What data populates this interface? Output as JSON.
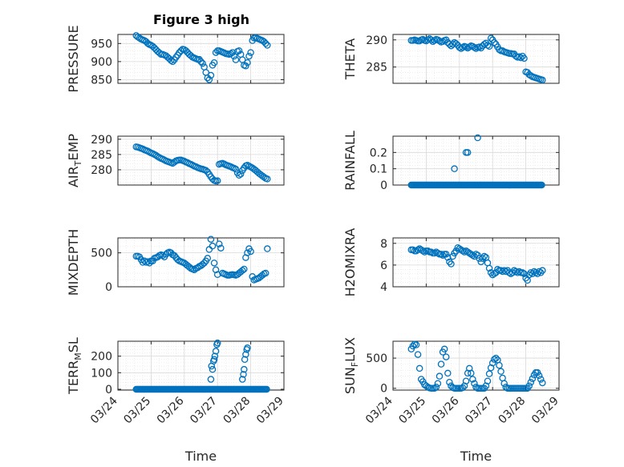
{
  "figure": {
    "title": "Figure 3 high",
    "marker_color": "#0072BD",
    "grid": "on (major and minor)"
  },
  "chart_data": [
    {
      "type": "scatter",
      "ylabel": "PRESSURE",
      "title": "Figure 3 high",
      "ylim": [
        840,
        975
      ],
      "yticks": [
        850,
        900,
        950
      ],
      "x": [
        24.55,
        24.6,
        24.65,
        24.7,
        24.75,
        24.8,
        24.85,
        24.9,
        24.95,
        25.0,
        25.05,
        25.1,
        25.15,
        25.2,
        25.25,
        25.3,
        25.35,
        25.4,
        25.45,
        25.5,
        25.55,
        25.6,
        25.65,
        25.7,
        25.75,
        25.8,
        25.85,
        25.9,
        25.95,
        26.0,
        26.05,
        26.1,
        26.15,
        26.2,
        26.25,
        26.3,
        26.35,
        26.4,
        26.45,
        26.5,
        26.55,
        26.6,
        26.65,
        26.7,
        26.75,
        26.8,
        26.85,
        26.9,
        26.95,
        27.0,
        27.05,
        27.1,
        27.15,
        27.2,
        27.25,
        27.3,
        27.35,
        27.4,
        27.45,
        27.5,
        27.55,
        27.6,
        27.65,
        27.7,
        27.75,
        27.8,
        27.85,
        27.9,
        27.95,
        28.0,
        28.05,
        28.1,
        28.15,
        28.2,
        28.25,
        28.3,
        28.35,
        28.4,
        28.45,
        28.5
      ],
      "y": [
        972,
        968,
        965,
        962,
        960,
        958,
        955,
        950,
        947,
        945,
        942,
        938,
        933,
        928,
        924,
        920,
        920,
        918,
        916,
        912,
        908,
        903,
        900,
        905,
        912,
        918,
        925,
        930,
        934,
        933,
        930,
        925,
        920,
        916,
        912,
        910,
        908,
        906,
        906,
        900,
        895,
        885,
        870,
        855,
        850,
        862,
        890,
        897,
        925,
        930,
        930,
        928,
        926,
        924,
        922,
        921,
        920,
        922,
        925,
        915,
        905,
        928,
        930,
        920,
        905,
        890,
        888,
        897,
        915,
        925,
        958,
        965,
        966,
        964,
        962,
        960,
        958,
        955,
        950,
        945
      ]
    },
    {
      "type": "scatter",
      "ylabel": "THETA",
      "ylim": [
        282,
        291
      ],
      "yticks": [
        285,
        290
      ],
      "x": [
        24.55,
        24.6,
        24.65,
        24.7,
        24.75,
        24.8,
        24.85,
        24.9,
        24.95,
        25.0,
        25.05,
        25.1,
        25.15,
        25.2,
        25.25,
        25.3,
        25.35,
        25.4,
        25.45,
        25.5,
        25.55,
        25.6,
        25.65,
        25.7,
        25.75,
        25.8,
        25.85,
        25.9,
        25.95,
        26.0,
        26.05,
        26.1,
        26.15,
        26.2,
        26.25,
        26.3,
        26.35,
        26.4,
        26.45,
        26.5,
        26.55,
        26.6,
        26.65,
        26.7,
        26.75,
        26.8,
        26.85,
        26.9,
        26.95,
        27.0,
        27.05,
        27.1,
        27.15,
        27.2,
        27.25,
        27.3,
        27.35,
        27.4,
        27.45,
        27.5,
        27.55,
        27.6,
        27.65,
        27.7,
        27.75,
        27.8,
        27.85,
        27.9,
        27.95,
        28.0,
        28.05,
        28.1,
        28.15,
        28.2,
        28.25,
        28.3,
        28.35,
        28.4,
        28.45,
        28.5
      ],
      "y": [
        289.9,
        289.9,
        290.0,
        289.9,
        289.8,
        289.8,
        290.0,
        290.1,
        289.9,
        289.8,
        290.0,
        290.2,
        290.0,
        289.7,
        289.9,
        290.1,
        290.0,
        289.8,
        289.6,
        289.7,
        289.9,
        290.0,
        289.5,
        289.2,
        288.9,
        289.2,
        289.5,
        289.3,
        289.0,
        288.6,
        288.4,
        288.6,
        288.8,
        288.7,
        288.5,
        288.7,
        288.9,
        288.8,
        288.6,
        288.4,
        288.6,
        288.7,
        288.5,
        288.9,
        289.2,
        289.4,
        289.0,
        288.8,
        290.3,
        290.0,
        289.5,
        289.2,
        288.7,
        288.2,
        288.0,
        288.0,
        287.8,
        287.7,
        287.6,
        287.5,
        287.5,
        287.4,
        287.4,
        287.0,
        286.8,
        286.9,
        286.7,
        287.0,
        286.6,
        284.1,
        284.0,
        283.6,
        283.4,
        283.2,
        283.1,
        283.0,
        282.9,
        282.8,
        282.7,
        282.6
      ]
    },
    {
      "type": "scatter",
      "ylabel": "AIR_TEMP",
      "ylim": [
        275,
        291
      ],
      "yticks": [
        280,
        285,
        290
      ],
      "x": [
        24.55,
        24.6,
        24.65,
        24.7,
        24.75,
        24.8,
        24.85,
        24.9,
        24.95,
        25.0,
        25.05,
        25.1,
        25.15,
        25.2,
        25.25,
        25.3,
        25.35,
        25.4,
        25.45,
        25.5,
        25.55,
        25.6,
        25.65,
        25.7,
        25.75,
        25.8,
        25.85,
        25.9,
        25.95,
        26.0,
        26.05,
        26.1,
        26.15,
        26.2,
        26.25,
        26.3,
        26.35,
        26.4,
        26.45,
        26.5,
        26.55,
        26.6,
        26.65,
        26.7,
        26.75,
        26.8,
        26.85,
        26.9,
        26.95,
        27.0,
        27.05,
        27.1,
        27.15,
        27.2,
        27.25,
        27.3,
        27.35,
        27.4,
        27.45,
        27.5,
        27.55,
        27.6,
        27.65,
        27.7,
        27.75,
        27.8,
        27.85,
        27.9,
        27.95,
        28.0,
        28.05,
        28.1,
        28.15,
        28.2,
        28.25,
        28.3,
        28.35,
        28.4,
        28.45,
        28.5
      ],
      "y": [
        287.5,
        287.4,
        287.2,
        287.0,
        286.8,
        286.5,
        286.3,
        286.1,
        285.8,
        285.5,
        285.3,
        285.0,
        284.7,
        284.3,
        284.0,
        283.7,
        283.5,
        283.2,
        282.9,
        282.7,
        282.5,
        282.3,
        282.1,
        282.5,
        282.9,
        283.1,
        283.2,
        283.2,
        283.0,
        282.8,
        282.5,
        282.3,
        282.0,
        281.8,
        281.5,
        281.2,
        281.0,
        280.7,
        280.5,
        280.3,
        280.2,
        280.0,
        279.8,
        279.3,
        278.5,
        277.7,
        277.0,
        276.5,
        276.3,
        276.4,
        281.8,
        282.0,
        282.1,
        281.9,
        281.6,
        281.4,
        281.2,
        281.0,
        280.7,
        280.5,
        280.2,
        279.0,
        278.2,
        278.6,
        279.8,
        280.6,
        281.3,
        281.5,
        281.2,
        280.9,
        280.6,
        280.2,
        279.8,
        279.3,
        278.8,
        278.4,
        278.0,
        277.6,
        277.2,
        277.0
      ]
    },
    {
      "type": "scatter",
      "ylabel": "RAINFALL",
      "ylim": [
        0,
        0.3
      ],
      "yticks": [
        0,
        0.1,
        0.2
      ],
      "x_zero_range": [
        24.55,
        28.5
      ],
      "x": [
        25.85,
        26.2,
        26.25,
        26.55
      ],
      "y": [
        0.1,
        0.2,
        0.2,
        0.29
      ]
    },
    {
      "type": "scatter",
      "ylabel": "MIXDEPTH",
      "ylim": [
        0,
        720
      ],
      "yticks": [
        0,
        500
      ],
      "x": [
        24.55,
        24.6,
        24.65,
        24.7,
        24.75,
        24.8,
        24.85,
        24.9,
        24.95,
        25.0,
        25.05,
        25.1,
        25.15,
        25.2,
        25.25,
        25.3,
        25.35,
        25.4,
        25.45,
        25.5,
        25.55,
        25.6,
        25.65,
        25.7,
        25.75,
        25.8,
        25.85,
        25.9,
        25.95,
        26.0,
        26.05,
        26.1,
        26.15,
        26.2,
        26.25,
        26.3,
        26.35,
        26.4,
        26.45,
        26.5,
        26.55,
        26.6,
        26.65,
        26.7,
        26.75,
        26.8,
        26.85,
        26.9,
        26.95,
        27.0,
        27.05,
        27.1,
        27.15,
        27.2,
        27.25,
        27.3,
        27.35,
        27.4,
        27.45,
        27.5,
        27.55,
        27.6,
        27.65,
        27.7,
        27.75,
        27.8,
        27.85,
        27.9,
        27.95,
        28.0,
        28.05,
        28.1,
        28.15,
        28.2,
        28.25,
        28.3,
        28.35,
        28.4,
        28.45,
        28.5
      ],
      "y": [
        450,
        450,
        440,
        400,
        360,
        380,
        360,
        370,
        350,
        380,
        380,
        420,
        430,
        440,
        460,
        470,
        460,
        440,
        480,
        500,
        510,
        500,
        470,
        460,
        430,
        400,
        380,
        370,
        360,
        350,
        330,
        310,
        290,
        270,
        260,
        250,
        270,
        280,
        300,
        310,
        330,
        350,
        380,
        420,
        550,
        700,
        600,
        350,
        250,
        180,
        630,
        570,
        200,
        190,
        180,
        170,
        170,
        175,
        180,
        175,
        170,
        180,
        200,
        220,
        240,
        260,
        430,
        500,
        560,
        520,
        150,
        100,
        110,
        120,
        130,
        150,
        170,
        190,
        200,
        560
      ]
    },
    {
      "type": "scatter",
      "ylabel": "H2OMIXRA",
      "ylim": [
        4,
        8.5
      ],
      "yticks": [
        4,
        6,
        8
      ],
      "x": [
        24.55,
        24.6,
        24.65,
        24.7,
        24.75,
        24.8,
        24.85,
        24.9,
        24.95,
        25.0,
        25.05,
        25.1,
        25.15,
        25.2,
        25.25,
        25.3,
        25.35,
        25.4,
        25.45,
        25.5,
        25.55,
        25.6,
        25.65,
        25.7,
        25.75,
        25.8,
        25.85,
        25.9,
        25.95,
        26.0,
        26.05,
        26.1,
        26.15,
        26.2,
        26.25,
        26.3,
        26.35,
        26.4,
        26.45,
        26.5,
        26.55,
        26.6,
        26.65,
        26.7,
        26.75,
        26.8,
        26.85,
        26.9,
        26.95,
        27.0,
        27.05,
        27.1,
        27.15,
        27.2,
        27.25,
        27.3,
        27.35,
        27.4,
        27.45,
        27.5,
        27.55,
        27.6,
        27.65,
        27.7,
        27.75,
        27.8,
        27.85,
        27.9,
        27.95,
        28.0,
        28.05,
        28.1,
        28.15,
        28.2,
        28.25,
        28.3,
        28.35,
        28.4,
        28.45,
        28.5
      ],
      "y": [
        7.4,
        7.4,
        7.3,
        7.3,
        7.4,
        7.5,
        7.4,
        7.3,
        7.2,
        7.3,
        7.3,
        7.2,
        7.2,
        7.1,
        7.1,
        7.2,
        7.1,
        7.0,
        7.0,
        6.9,
        7.0,
        7.0,
        6.7,
        6.3,
        6.1,
        6.8,
        7.1,
        7.3,
        7.6,
        7.5,
        7.4,
        7.3,
        7.2,
        7.3,
        7.2,
        7.1,
        7.0,
        6.9,
        6.8,
        7.0,
        6.9,
        6.6,
        6.3,
        6.6,
        6.8,
        6.7,
        6.2,
        5.7,
        5.3,
        5.1,
        5.2,
        5.3,
        5.6,
        5.5,
        5.5,
        5.4,
        5.5,
        5.4,
        5.5,
        5.3,
        5.2,
        5.3,
        5.5,
        5.4,
        5.3,
        5.4,
        5.3,
        5.3,
        5.2,
        4.8,
        4.6,
        5.1,
        5.3,
        5.2,
        5.4,
        5.3,
        5.2,
        5.4,
        5.3,
        5.5
      ]
    },
    {
      "type": "scatter",
      "ylabel": "TERR_MSL",
      "ylim": [
        -5,
        290
      ],
      "yticks": [
        0,
        100,
        200
      ],
      "x_zero_range": [
        24.55,
        28.5
      ],
      "x": [
        26.8,
        26.82,
        26.85,
        26.88,
        26.9,
        26.92,
        26.95,
        26.98,
        27.0,
        27.75,
        27.78,
        27.8,
        27.82,
        27.85,
        27.88,
        27.9
      ],
      "y": [
        60,
        140,
        120,
        170,
        180,
        200,
        230,
        270,
        280,
        60,
        90,
        120,
        180,
        210,
        240,
        250
      ]
    },
    {
      "type": "scatter",
      "ylabel": "SUN_FLUX",
      "ylim": [
        -30,
        780
      ],
      "yticks": [
        0,
        500
      ],
      "xlabel": "Time",
      "xlim": [
        24,
        29
      ],
      "xticklabels": [
        "03/24",
        "03/25",
        "03/26",
        "03/27",
        "03/28",
        "03/29"
      ],
      "x": [
        24.55,
        24.6,
        24.65,
        24.7,
        24.75,
        24.8,
        24.85,
        24.9,
        24.95,
        25.0,
        25.05,
        25.1,
        25.15,
        25.2,
        25.25,
        25.3,
        25.35,
        25.4,
        25.45,
        25.5,
        25.55,
        25.6,
        25.65,
        25.7,
        25.75,
        25.8,
        25.85,
        25.9,
        25.95,
        26.0,
        26.05,
        26.1,
        26.15,
        26.2,
        26.25,
        26.3,
        26.35,
        26.4,
        26.45,
        26.5,
        26.55,
        26.6,
        26.65,
        26.7,
        26.75,
        26.8,
        26.85,
        26.9,
        26.95,
        27.0,
        27.05,
        27.1,
        27.15,
        27.2,
        27.25,
        27.3,
        27.35,
        27.4,
        27.45,
        27.5,
        27.55,
        27.6,
        27.65,
        27.7,
        27.75,
        27.8,
        27.85,
        27.9,
        27.95,
        28.0,
        28.05,
        28.1,
        28.15,
        28.2,
        28.25,
        28.3,
        28.35,
        28.4,
        28.45,
        28.5
      ],
      "y": [
        650,
        700,
        730,
        720,
        560,
        330,
        150,
        110,
        60,
        40,
        20,
        5,
        0,
        0,
        0,
        20,
        80,
        200,
        400,
        600,
        650,
        520,
        250,
        100,
        40,
        10,
        0,
        0,
        0,
        0,
        0,
        10,
        40,
        120,
        250,
        330,
        250,
        150,
        80,
        20,
        0,
        0,
        0,
        0,
        0,
        40,
        120,
        240,
        340,
        420,
        480,
        500,
        470,
        380,
        280,
        170,
        80,
        20,
        0,
        0,
        0,
        0,
        0,
        0,
        0,
        0,
        0,
        0,
        0,
        0,
        0,
        40,
        100,
        160,
        220,
        260,
        260,
        210,
        150,
        90
      ]
    }
  ]
}
